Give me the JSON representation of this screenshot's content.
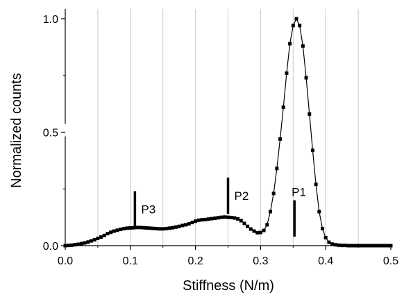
{
  "chart_data": {
    "type": "line",
    "title": "",
    "xlabel": "Stiffness (N/m)",
    "ylabel": "Normalized counts",
    "xlim": [
      0.0,
      0.5
    ],
    "ylim": [
      0.0,
      1.0
    ],
    "x_ticks": [
      0.0,
      0.1,
      0.2,
      0.3,
      0.4,
      0.5
    ],
    "x_tick_labels": [
      "0.0",
      "0.1",
      "0.2",
      "0.3",
      "0.4",
      "0.5"
    ],
    "y_ticks": [
      0.0,
      0.5,
      1.0
    ],
    "y_tick_labels": [
      "0.0",
      "0.5",
      "1.0"
    ],
    "grid": "vertical",
    "marker": "square",
    "colors": {
      "series": "#000000",
      "grid": "#c8c8c8"
    },
    "series": [
      {
        "x": [
          0.0,
          0.005,
          0.01,
          0.015,
          0.02,
          0.025,
          0.03,
          0.035,
          0.04,
          0.045,
          0.05,
          0.055,
          0.06,
          0.065,
          0.07,
          0.075,
          0.08,
          0.085,
          0.09,
          0.095,
          0.1,
          0.105,
          0.11,
          0.115,
          0.12,
          0.125,
          0.13,
          0.135,
          0.14,
          0.145,
          0.15,
          0.155,
          0.16,
          0.165,
          0.17,
          0.175,
          0.18,
          0.185,
          0.19,
          0.195,
          0.2,
          0.205,
          0.21,
          0.215,
          0.22,
          0.225,
          0.23,
          0.235,
          0.24,
          0.245,
          0.25,
          0.255,
          0.26,
          0.265,
          0.27,
          0.275,
          0.28,
          0.285,
          0.29,
          0.295,
          0.3,
          0.305,
          0.31,
          0.315,
          0.32,
          0.325,
          0.33,
          0.335,
          0.34,
          0.345,
          0.35,
          0.355,
          0.36,
          0.365,
          0.37,
          0.375,
          0.38,
          0.385,
          0.39,
          0.395,
          0.4,
          0.405,
          0.41,
          0.415,
          0.42,
          0.425,
          0.43,
          0.435,
          0.44,
          0.445,
          0.45,
          0.455,
          0.46,
          0.465,
          0.47,
          0.475,
          0.48,
          0.485,
          0.49,
          0.495,
          0.5
        ],
        "y": [
          0.0,
          0.001,
          0.002,
          0.004,
          0.006,
          0.009,
          0.012,
          0.016,
          0.021,
          0.026,
          0.032,
          0.038,
          0.045,
          0.053,
          0.059,
          0.064,
          0.068,
          0.072,
          0.075,
          0.077,
          0.078,
          0.079,
          0.08,
          0.08,
          0.079,
          0.078,
          0.077,
          0.076,
          0.075,
          0.074,
          0.074,
          0.075,
          0.077,
          0.079,
          0.082,
          0.085,
          0.089,
          0.092,
          0.096,
          0.102,
          0.108,
          0.112,
          0.114,
          0.115,
          0.117,
          0.119,
          0.121,
          0.123,
          0.125,
          0.126,
          0.125,
          0.124,
          0.122,
          0.118,
          0.11,
          0.098,
          0.085,
          0.073,
          0.064,
          0.057,
          0.058,
          0.067,
          0.092,
          0.15,
          0.23,
          0.34,
          0.47,
          0.61,
          0.76,
          0.89,
          0.97,
          1.0,
          0.97,
          0.88,
          0.74,
          0.58,
          0.42,
          0.27,
          0.15,
          0.075,
          0.035,
          0.015,
          0.007,
          0.004,
          0.002,
          0.001,
          0.001,
          0.0,
          0.0,
          0.0,
          0.0,
          0.0,
          0.0,
          0.0,
          0.0,
          0.0,
          0.0,
          0.0,
          0.0,
          0.0,
          0.0
        ]
      }
    ],
    "annotations": [
      {
        "label": "P1",
        "x": 0.352,
        "y_from": 0.04,
        "y_to": 0.2
      },
      {
        "label": "P2",
        "x": 0.25,
        "y_from": 0.14,
        "y_to": 0.3
      },
      {
        "label": "P3",
        "x": 0.107,
        "y_from": 0.08,
        "y_to": 0.24
      }
    ]
  }
}
